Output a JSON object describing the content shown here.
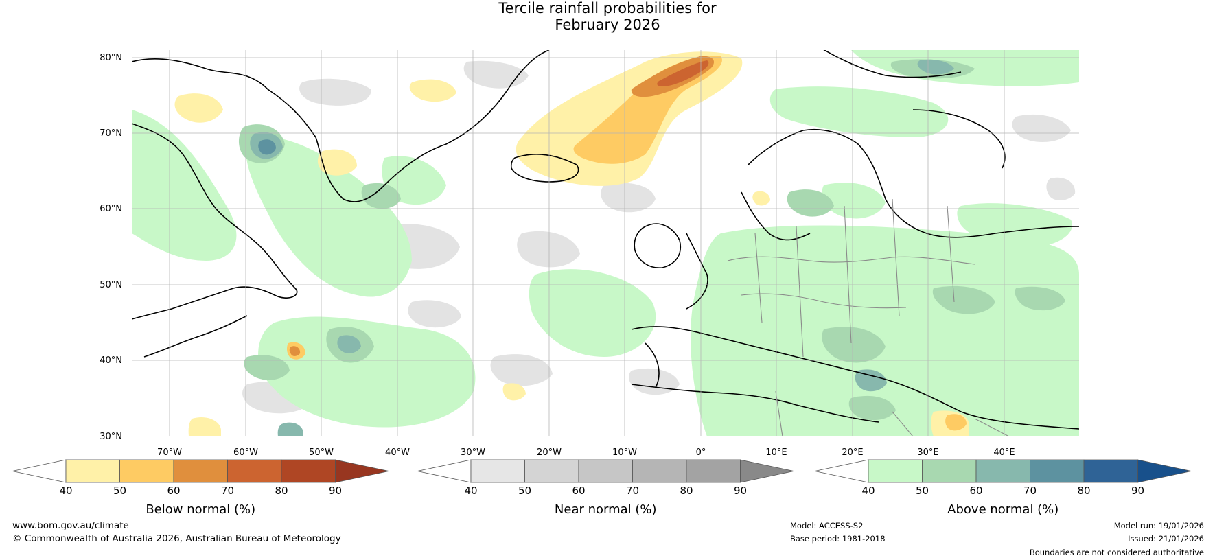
{
  "title_line1": "Tercile rainfall probabilities for",
  "title_line2": "February 2026",
  "lat_labels": [
    "80°N",
    "70°N",
    "60°N",
    "50°N",
    "40°N",
    "30°N"
  ],
  "lon_labels": [
    "70°W",
    "60°W",
    "50°W",
    "40°W",
    "30°W",
    "20°W",
    "10°W",
    "0°",
    "10°E",
    "20°E",
    "30°E",
    "40°E"
  ],
  "legends": [
    {
      "title": "Below normal (%)",
      "ticks": [
        "40",
        "50",
        "60",
        "70",
        "80",
        "90"
      ],
      "colors": [
        "#fff1a8",
        "#fecb63",
        "#e08f3d",
        "#cc6430",
        "#af4624",
        "#983620"
      ]
    },
    {
      "title": "Near normal (%)",
      "ticks": [
        "40",
        "50",
        "60",
        "70",
        "80",
        "90"
      ],
      "colors": [
        "#e6e6e6",
        "#d4d4d4",
        "#c6c6c6",
        "#b5b5b5",
        "#a3a3a3",
        "#898989"
      ]
    },
    {
      "title": "Above normal (%)",
      "ticks": [
        "40",
        "50",
        "60",
        "70",
        "80",
        "90"
      ],
      "colors": [
        "#c8f8c8",
        "#a8d8b0",
        "#87b8ad",
        "#5d92a0",
        "#2f6396",
        "#18508b"
      ]
    }
  ],
  "footer": {
    "website": "www.bom.gov.au/climate",
    "copyright": "© Commonwealth of Australia 2026, Australian Bureau of Meteorology",
    "model": "Model: ACCESS-S2",
    "base_period": "Base period: 1981-2018",
    "model_run": "Model run: 19/01/2026",
    "issued": "Issued: 21/01/2026",
    "disclaimer": "Boundaries are not considered authoritative"
  }
}
